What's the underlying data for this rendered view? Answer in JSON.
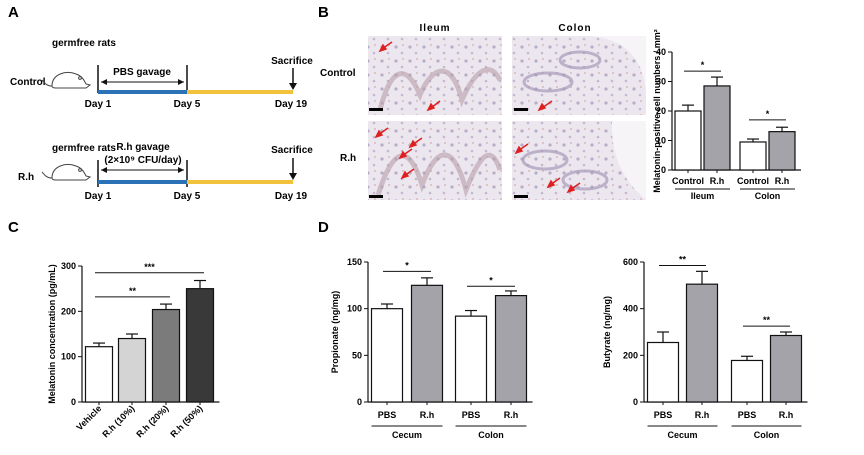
{
  "panels": {
    "a": "A",
    "b": "B",
    "c": "C",
    "d": "D"
  },
  "panel_a": {
    "control": {
      "row_label": "Control",
      "subject": "germfree rats",
      "gavage": "PBS gavage",
      "day_start": "Day 1",
      "day_mid": "Day 5",
      "day_end": "Day 19",
      "endpoint": "Sacrifice"
    },
    "rh": {
      "row_label": "R.h",
      "subject": "germfree rats",
      "gavage": "R.h gavage",
      "dose": "(2×10⁹ CFU/day)",
      "day_start": "Day 1",
      "day_mid": "Day 5",
      "day_end": "Day 19",
      "endpoint": "Sacrifice"
    },
    "colors": {
      "phase1": "#2b73b6",
      "phase2": "#f2c23a"
    }
  },
  "panel_b": {
    "col_headers": [
      "Ileum",
      "Colon"
    ],
    "row_headers": [
      "Control",
      "R.h"
    ]
  },
  "colors": {
    "open_bar": "#ffffff",
    "gray_bar": "#a3a3a9",
    "arrow_red": "#e02020"
  },
  "chart_data": [
    {
      "id": "b",
      "type": "bar",
      "ylabel": "Melatonin-positive cell numbers / mm²",
      "ylim": [
        0,
        40
      ],
      "yticks": [
        0,
        10,
        20,
        30,
        40
      ],
      "categories": [
        "Control",
        "R.h",
        "Control",
        "R.h"
      ],
      "groups": [
        {
          "label": "Ileum",
          "indices": [
            0,
            1
          ]
        },
        {
          "label": "Colon",
          "indices": [
            2,
            3
          ]
        }
      ],
      "values": [
        20,
        28.5,
        9.5,
        13
      ],
      "errors": [
        2,
        3,
        1,
        1.5
      ],
      "fills": [
        "#ffffff",
        "#a3a3a9",
        "#ffffff",
        "#a3a3a9"
      ],
      "significance": [
        {
          "from": 0,
          "to": 1,
          "label": "*",
          "y": 33.5
        },
        {
          "from": 2,
          "to": 3,
          "label": "*",
          "y": 17
        }
      ]
    },
    {
      "id": "c",
      "type": "bar",
      "ylabel": "Melatonin concentration (pg/mL)",
      "ylim": [
        0,
        300
      ],
      "yticks": [
        0,
        100,
        200,
        300
      ],
      "categories": [
        "Vehicle",
        "R.h (10%)",
        "R.h (20%)",
        "R.h (50%)"
      ],
      "values": [
        122,
        140,
        204,
        250
      ],
      "errors": [
        8,
        10,
        12,
        18
      ],
      "fills": [
        "#ffffff",
        "#d3d4d3",
        "#7b7b7b",
        "#393939"
      ],
      "significance": [
        {
          "from": 0,
          "to": 2,
          "label": "**",
          "y": 232
        },
        {
          "from": 0,
          "to": 3,
          "label": "***",
          "y": 285
        }
      ]
    },
    {
      "id": "d1",
      "type": "bar",
      "ylabel": "Propionate (ng/mg)",
      "ylim": [
        0,
        150
      ],
      "yticks": [
        0,
        50,
        100,
        150
      ],
      "categories": [
        "PBS",
        "R.h",
        "PBS",
        "R.h"
      ],
      "groups": [
        {
          "label": "Cecum",
          "indices": [
            0,
            1
          ]
        },
        {
          "label": "Colon",
          "indices": [
            2,
            3
          ]
        }
      ],
      "values": [
        100,
        125,
        92,
        114
      ],
      "errors": [
        5,
        8,
        6,
        5
      ],
      "fills": [
        "#ffffff",
        "#a3a3a9",
        "#ffffff",
        "#a3a3a9"
      ],
      "significance": [
        {
          "from": 0,
          "to": 1,
          "label": "*",
          "y": 140
        },
        {
          "from": 2,
          "to": 3,
          "label": "*",
          "y": 124
        }
      ]
    },
    {
      "id": "d2",
      "type": "bar",
      "ylabel": "Butyrate (ng/mg)",
      "ylim": [
        0,
        600
      ],
      "yticks": [
        0,
        200,
        400,
        600
      ],
      "categories": [
        "PBS",
        "R.h",
        "PBS",
        "R.h"
      ],
      "groups": [
        {
          "label": "Cecum",
          "indices": [
            0,
            1
          ]
        },
        {
          "label": "Colon",
          "indices": [
            2,
            3
          ]
        }
      ],
      "values": [
        255,
        505,
        178,
        285
      ],
      "errors": [
        45,
        55,
        18,
        15
      ],
      "fills": [
        "#ffffff",
        "#a3a3a9",
        "#ffffff",
        "#a3a3a9"
      ],
      "significance": [
        {
          "from": 0,
          "to": 1,
          "label": "**",
          "y": 585
        },
        {
          "from": 2,
          "to": 3,
          "label": "**",
          "y": 325
        }
      ]
    }
  ]
}
